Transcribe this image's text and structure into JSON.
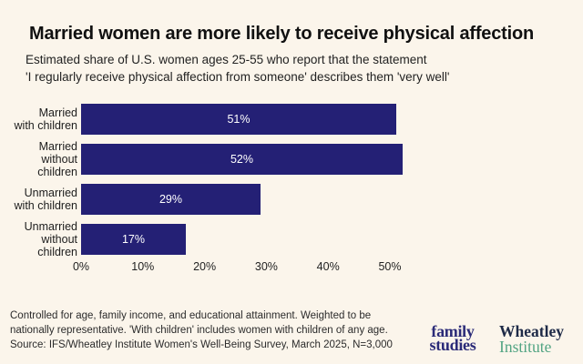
{
  "header": {
    "title": "Married women are more likely to receive physical affection",
    "subtitle_line1": "Estimated share of U.S. women ages 25-55 who report that the statement",
    "subtitle_line2": "'I regularly receive physical affection from someone' describes them 'very well'"
  },
  "chart_data": {
    "type": "bar",
    "orientation": "horizontal",
    "title": "Married women are more likely to receive physical affection",
    "subtitle": "Estimated share of U.S. women ages 25-55 who report that the statement 'I regularly receive physical affection from someone' describes them 'very well'",
    "categories": [
      "Married with children",
      "Married without children",
      "Unmarried with children",
      "Unmarried without children"
    ],
    "category_lines": [
      [
        "Married",
        "with children"
      ],
      [
        "Married",
        "without children"
      ],
      [
        "Unmarried",
        "with children"
      ],
      [
        "Unmarried",
        "without children"
      ]
    ],
    "values": [
      51,
      52,
      29,
      17
    ],
    "value_labels": [
      "51%",
      "52%",
      "29%",
      "17%"
    ],
    "xlabel": "",
    "ylabel": "",
    "xlim": [
      0,
      53
    ],
    "xticks": [
      0,
      10,
      20,
      30,
      40,
      50
    ],
    "xtick_labels": [
      "0%",
      "10%",
      "20%",
      "30%",
      "40%",
      "50%"
    ],
    "grid": false,
    "legend": false,
    "bar_color": "#242075",
    "value_label_color": "#ffffff"
  },
  "footer": {
    "note_lines": [
      "Controlled for age, family income, and educational attainment. Weighted to be",
      "nationally representative. 'With children' includes women with children of any age.",
      "Source: IFS/Wheatley Institute Women's Well-Being Survey, March 2025, N=3,000"
    ],
    "logos": {
      "family_studies": [
        "family",
        "studies"
      ],
      "wheatley": [
        "Wheatley",
        "Institute"
      ]
    }
  },
  "colors": {
    "background": "#FBF5EB",
    "bar": "#242075",
    "title_text": "#111111",
    "body_text": "#2b2b2b",
    "family_studies_navy": "#2b2b78",
    "wheatley_navy": "#1e2a47",
    "institute_teal": "#52a483"
  }
}
